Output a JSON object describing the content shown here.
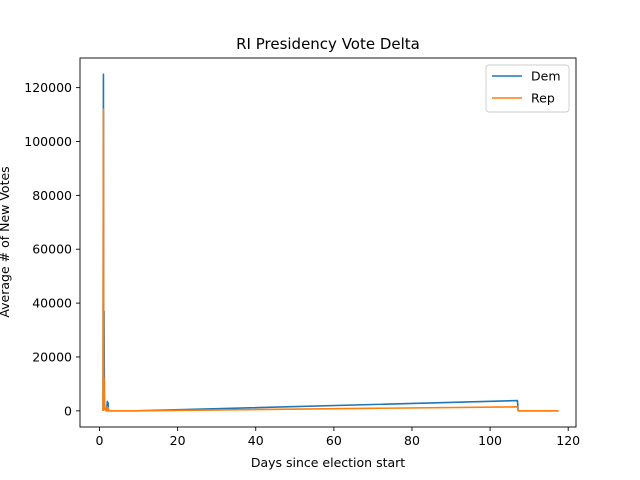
{
  "chart_data": {
    "type": "line",
    "title": "RI Presidency Vote Delta",
    "xlabel": "Days since election start",
    "ylabel": "Average # of New Votes",
    "xlim": [
      -5,
      122
    ],
    "ylim": [
      -6000,
      131000
    ],
    "xticks": [
      0,
      20,
      40,
      60,
      80,
      100,
      120
    ],
    "yticks": [
      0,
      20000,
      40000,
      60000,
      80000,
      100000,
      120000
    ],
    "grid": false,
    "legend_position": "top-right",
    "series": [
      {
        "name": "Dem",
        "color": "#1f77b4",
        "points": [
          [
            0.9,
            0
          ],
          [
            1.0,
            125000
          ],
          [
            1.05,
            12000
          ],
          [
            1.1,
            5000
          ],
          [
            1.15,
            37000
          ],
          [
            1.25,
            3000
          ],
          [
            1.4,
            500
          ],
          [
            1.6,
            300
          ],
          [
            1.8,
            0
          ],
          [
            2.0,
            3500
          ],
          [
            2.1,
            0
          ],
          [
            2.2,
            3000
          ],
          [
            2.3,
            0
          ],
          [
            2.5,
            0
          ],
          [
            9.5,
            0
          ],
          [
            107.0,
            3800
          ],
          [
            107.2,
            0
          ],
          [
            117.5,
            0
          ]
        ]
      },
      {
        "name": "Rep",
        "color": "#ff7f0e",
        "points": [
          [
            0.9,
            0
          ],
          [
            1.0,
            112000
          ],
          [
            1.05,
            9000
          ],
          [
            1.1,
            3000
          ],
          [
            1.15,
            12000
          ],
          [
            1.25,
            1500
          ],
          [
            1.4,
            300
          ],
          [
            1.6,
            200
          ],
          [
            1.8,
            0
          ],
          [
            2.0,
            1500
          ],
          [
            2.1,
            0
          ],
          [
            2.2,
            1200
          ],
          [
            2.3,
            0
          ],
          [
            2.5,
            0
          ],
          [
            9.5,
            0
          ],
          [
            107.0,
            1500
          ],
          [
            107.2,
            0
          ],
          [
            117.5,
            0
          ]
        ]
      }
    ]
  }
}
